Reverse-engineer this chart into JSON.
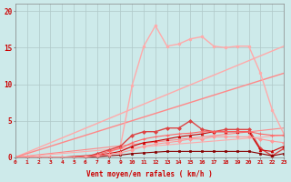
{
  "xlabel": "Vent moyen/en rafales ( km/h )",
  "background_color": "#cdeaea",
  "grid_color": "#b0c8c8",
  "x_ticks": [
    0,
    1,
    2,
    3,
    4,
    5,
    6,
    7,
    8,
    9,
    10,
    11,
    12,
    13,
    14,
    15,
    16,
    17,
    18,
    19,
    20,
    21,
    22,
    23
  ],
  "ylim": [
    0,
    21
  ],
  "xlim": [
    0,
    23
  ],
  "yticks": [
    0,
    5,
    10,
    15,
    20
  ],
  "lines": [
    {
      "x": [
        0,
        23
      ],
      "y": [
        0,
        15.2
      ],
      "color": "#ffaaaa",
      "marker": "",
      "lw": 1.0,
      "ms": 0
    },
    {
      "x": [
        0,
        23
      ],
      "y": [
        0,
        11.5
      ],
      "color": "#ff8888",
      "marker": "",
      "lw": 1.0,
      "ms": 0
    },
    {
      "x": [
        0,
        23
      ],
      "y": [
        0,
        4.0
      ],
      "color": "#ff8888",
      "marker": "",
      "lw": 0.8,
      "ms": 0
    },
    {
      "x": [
        0,
        23
      ],
      "y": [
        0,
        3.0
      ],
      "color": "#ffaaaa",
      "marker": "",
      "lw": 0.8,
      "ms": 0
    },
    {
      "x": [
        0,
        1,
        2,
        3,
        4,
        5,
        6,
        7,
        8,
        9,
        10,
        11,
        12,
        13,
        14,
        15,
        16,
        17,
        18,
        19,
        20,
        21,
        22,
        23
      ],
      "y": [
        0,
        0,
        0,
        0,
        0,
        0,
        0,
        0,
        0.5,
        1.5,
        9.8,
        15.2,
        18.0,
        15.2,
        15.5,
        16.2,
        16.5,
        15.2,
        15.0,
        15.2,
        15.2,
        11.5,
        6.5,
        3.2
      ],
      "color": "#ffaaaa",
      "marker": "o",
      "lw": 1.0,
      "ms": 2
    },
    {
      "x": [
        0,
        1,
        2,
        3,
        4,
        5,
        6,
        7,
        8,
        9,
        10,
        11,
        12,
        13,
        14,
        15,
        16,
        17,
        18,
        19,
        20,
        21,
        22,
        23
      ],
      "y": [
        0,
        0,
        0,
        0,
        0,
        0,
        0,
        0.5,
        1.0,
        1.5,
        3.0,
        3.5,
        3.5,
        4.0,
        4.0,
        5.0,
        3.8,
        3.5,
        3.8,
        3.8,
        3.8,
        1.2,
        0.2,
        1.2
      ],
      "color": "#dd4444",
      "marker": "D",
      "lw": 1.0,
      "ms": 2
    },
    {
      "x": [
        0,
        1,
        2,
        3,
        4,
        5,
        6,
        7,
        8,
        9,
        10,
        11,
        12,
        13,
        14,
        15,
        16,
        17,
        18,
        19,
        20,
        21,
        22,
        23
      ],
      "y": [
        0,
        0,
        0,
        0,
        0,
        0.1,
        0.2,
        0.3,
        0.5,
        0.8,
        1.5,
        2.0,
        2.2,
        2.5,
        2.8,
        3.0,
        3.2,
        3.5,
        3.5,
        3.5,
        3.5,
        1.0,
        0.8,
        1.5
      ],
      "color": "#cc0000",
      "marker": "^",
      "lw": 0.8,
      "ms": 2
    },
    {
      "x": [
        0,
        1,
        2,
        3,
        4,
        5,
        6,
        7,
        8,
        9,
        10,
        11,
        12,
        13,
        14,
        15,
        16,
        17,
        18,
        19,
        20,
        21,
        22,
        23
      ],
      "y": [
        0,
        0,
        0,
        0,
        0,
        0,
        0,
        0.1,
        0.2,
        0.3,
        0.5,
        0.6,
        0.7,
        0.8,
        0.8,
        0.8,
        0.8,
        0.8,
        0.8,
        0.8,
        0.8,
        0.5,
        0.2,
        0.5
      ],
      "color": "#880000",
      "marker": "s",
      "lw": 0.8,
      "ms": 2
    },
    {
      "x": [
        0,
        1,
        2,
        3,
        4,
        5,
        6,
        7,
        8,
        9,
        10,
        11,
        12,
        13,
        14,
        15,
        16,
        17,
        18,
        19,
        20,
        21,
        22,
        23
      ],
      "y": [
        0,
        0,
        0,
        0,
        0,
        0,
        0,
        0.3,
        0.8,
        1.2,
        2.0,
        2.5,
        2.8,
        3.0,
        3.2,
        3.3,
        3.5,
        3.5,
        3.5,
        3.5,
        3.5,
        3.2,
        3.0,
        3.0
      ],
      "color": "#ff6666",
      "marker": "+",
      "lw": 0.8,
      "ms": 3
    },
    {
      "x": [
        0,
        1,
        2,
        3,
        4,
        5,
        6,
        7,
        8,
        9,
        10,
        11,
        12,
        13,
        14,
        15,
        16,
        17,
        18,
        19,
        20,
        21,
        22,
        23
      ],
      "y": [
        0,
        0,
        0,
        0,
        0,
        0,
        0.1,
        0.2,
        0.4,
        0.6,
        1.0,
        1.5,
        1.8,
        2.0,
        2.2,
        2.5,
        2.5,
        2.8,
        2.8,
        2.8,
        2.8,
        2.5,
        2.2,
        2.0
      ],
      "color": "#ff9999",
      "marker": "D",
      "lw": 0.8,
      "ms": 2
    }
  ]
}
